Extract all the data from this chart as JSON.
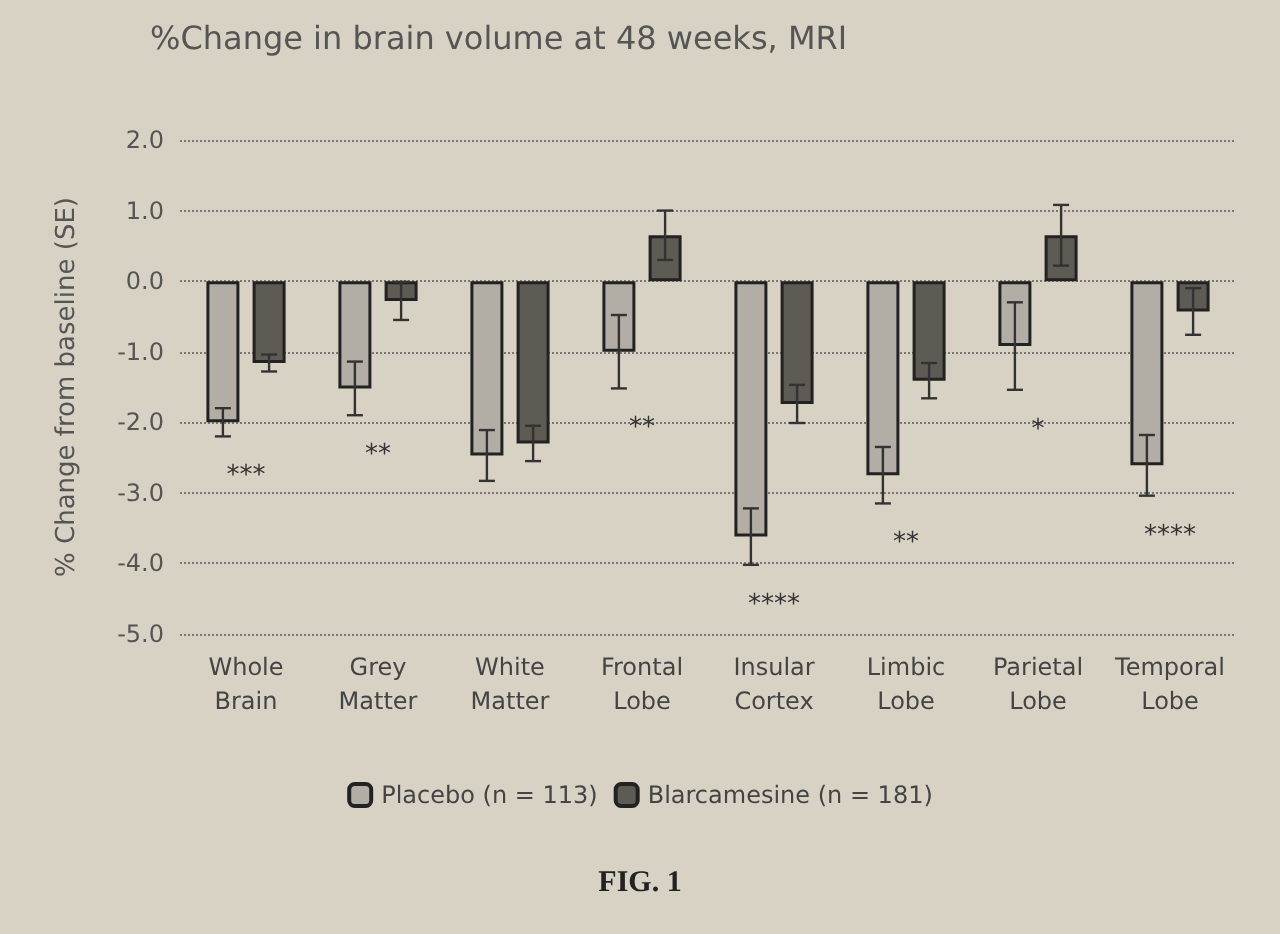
{
  "chart_data": {
    "type": "bar",
    "title": "%Change in brain volume at 48 weeks, MRI",
    "ylabel": "% Change from baseline (SE)",
    "categories": [
      "Whole Brain",
      "Grey Matter",
      "White Matter",
      "Frontal Lobe",
      "Insular Cortex",
      "Limbic Lobe",
      "Parietal Lobe",
      "Temporal Lobe"
    ],
    "series": [
      {
        "name": "Placebo (n = 113)",
        "color": "#b3aea5",
        "values": [
          -2.0,
          -1.52,
          -2.47,
          -1.0,
          -3.62,
          -2.75,
          -0.92,
          -2.61
        ],
        "errors": [
          0.2,
          0.38,
          0.36,
          0.52,
          0.4,
          0.4,
          0.62,
          0.43
        ]
      },
      {
        "name": "Blarcamesine (n = 181)",
        "color": "#5e5a54",
        "values": [
          -1.16,
          -0.28,
          -2.3,
          0.65,
          -1.74,
          -1.41,
          0.65,
          -0.43
        ],
        "errors": [
          0.12,
          0.27,
          0.25,
          0.35,
          0.27,
          0.25,
          0.43,
          0.33
        ]
      }
    ],
    "ylim": [
      -5,
      2
    ],
    "yticks": [
      {
        "value": -5,
        "label": "-5.0"
      },
      {
        "value": -4,
        "label": "-4.0"
      },
      {
        "value": -3,
        "label": "-3.0"
      },
      {
        "value": -2,
        "label": "-2.0"
      },
      {
        "value": -1,
        "label": "-1.0"
      },
      {
        "value": 0,
        "label": "0.0"
      },
      {
        "value": 1,
        "label": "1.0"
      },
      {
        "value": 2,
        "label": "2.0"
      }
    ],
    "grid": "y",
    "legend": "bottom",
    "annotations": [
      "***",
      "**",
      "**",
      "****",
      "**",
      "*",
      "****",
      "FIG. 1"
    ]
  }
}
